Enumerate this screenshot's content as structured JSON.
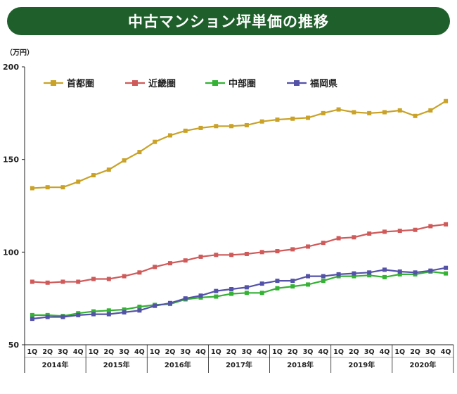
{
  "title": "中古マンション坪単価の推移",
  "chart_data": {
    "type": "line",
    "title": "中古マンション坪単価の推移",
    "ylabel": "（万円）",
    "xlabel": "",
    "ylim": [
      50,
      200
    ],
    "yticks": [
      50,
      100,
      150,
      200
    ],
    "quarter_labels": [
      "1Q",
      "2Q",
      "3Q",
      "4Q",
      "1Q",
      "2Q",
      "3Q",
      "4Q",
      "1Q",
      "2Q",
      "3Q",
      "4Q",
      "1Q",
      "2Q",
      "3Q",
      "4Q",
      "1Q",
      "2Q",
      "3Q",
      "4Q",
      "1Q",
      "2Q",
      "3Q",
      "4Q",
      "1Q",
      "2Q",
      "3Q",
      "4Q"
    ],
    "years": [
      "2014年",
      "2015年",
      "2016年",
      "2017年",
      "2018年",
      "2019年",
      "2020年"
    ],
    "legend_position": "top-left",
    "grid": false,
    "series": [
      {
        "name": "首都圏",
        "color": "#c9a227",
        "values": [
          134.5,
          135,
          135,
          138,
          141.5,
          144.5,
          149.5,
          154,
          159.5,
          163,
          165.5,
          167,
          168,
          168,
          168.5,
          170.5,
          171.5,
          172,
          172.5,
          175,
          177,
          175.5,
          175,
          175.5,
          176.5,
          173.5,
          176.5,
          181.5
        ]
      },
      {
        "name": "近畿圏",
        "color": "#d05a5a",
        "values": [
          84,
          83.5,
          84,
          84,
          85.5,
          85.5,
          87,
          89,
          92,
          94,
          95.5,
          97.5,
          98.5,
          98.5,
          99,
          100,
          100.5,
          101.5,
          103,
          105,
          107.5,
          108,
          110,
          111,
          111.5,
          112,
          114,
          115
        ]
      },
      {
        "name": "中部圏",
        "color": "#33b233",
        "values": [
          66,
          66,
          65.5,
          67,
          68,
          68.5,
          69,
          70.5,
          71.5,
          72,
          74.5,
          75.5,
          76,
          77.5,
          78,
          78,
          80.5,
          81.5,
          82.5,
          84.5,
          87,
          87,
          87.5,
          86.5,
          88,
          88,
          89.5,
          88.5
        ]
      },
      {
        "name": "福岡県",
        "color": "#5452a8",
        "values": [
          64,
          65,
          65,
          66,
          66.5,
          66.5,
          67.5,
          68.5,
          71,
          72.5,
          75,
          76.5,
          79,
          80,
          81,
          83,
          84.5,
          84.5,
          87,
          87,
          88,
          88.5,
          89,
          90.5,
          89.5,
          89,
          90,
          91.5
        ]
      }
    ]
  }
}
